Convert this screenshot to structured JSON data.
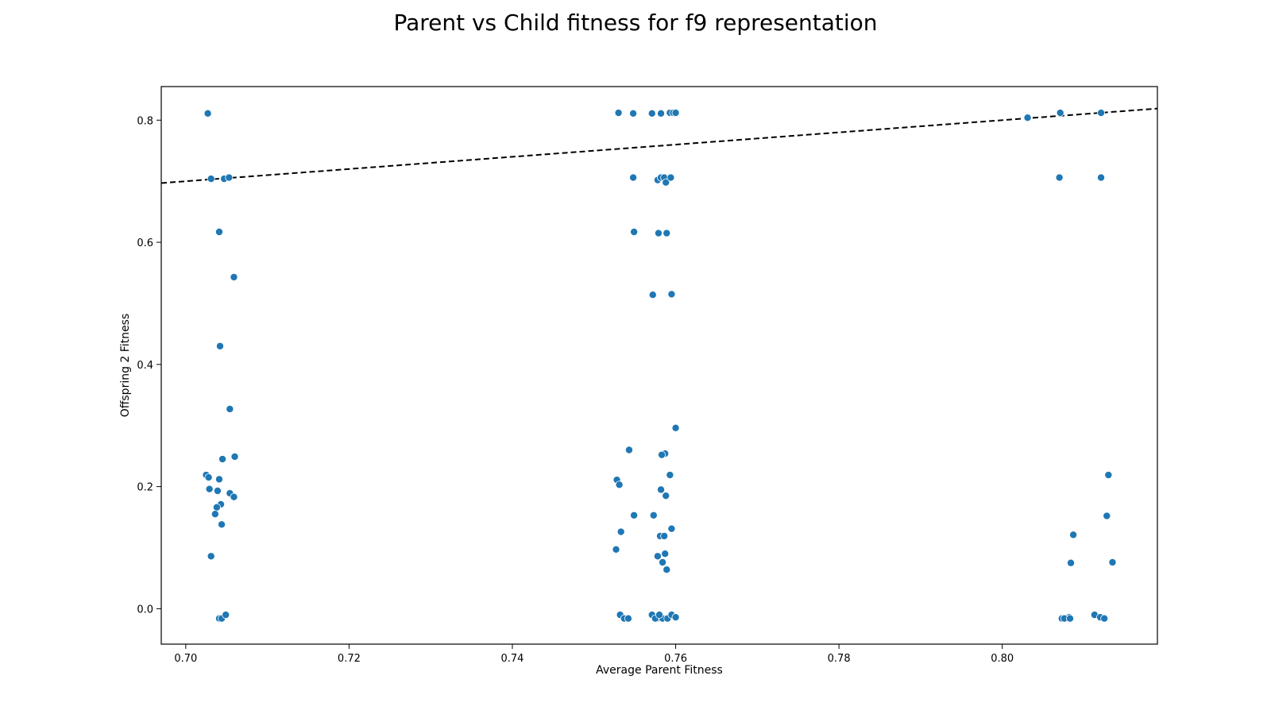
{
  "chart_data": {
    "type": "scatter",
    "title": "Parent vs Child fitness for f9 representation",
    "xlabel": "Average Parent Fitness",
    "ylabel": "Offspring 2 Fitness",
    "xlim": [
      0.697,
      0.819
    ],
    "ylim": [
      -0.058,
      0.855
    ],
    "xticks": [
      0.7,
      0.72,
      0.74,
      0.76,
      0.78,
      0.8
    ],
    "xtick_labels": [
      "0.70",
      "0.72",
      "0.74",
      "0.76",
      "0.78",
      "0.80"
    ],
    "yticks": [
      0.0,
      0.2,
      0.4,
      0.6,
      0.8
    ],
    "ytick_labels": [
      "0.0",
      "0.2",
      "0.4",
      "0.6",
      "0.8"
    ],
    "marker_color": "#1f77b4",
    "reference_line": {
      "style": "dashed",
      "color": "#000000",
      "description": "y = x"
    },
    "series": [
      {
        "name": "Offspring 2 Fitness",
        "x": [
          0.7027,
          0.7031,
          0.7047,
          0.7053,
          0.7041,
          0.7059,
          0.7042,
          0.7054,
          0.7045,
          0.706,
          0.7025,
          0.7028,
          0.7029,
          0.7039,
          0.7041,
          0.7054,
          0.7059,
          0.7043,
          0.7038,
          0.7036,
          0.7044,
          0.7031,
          0.7041,
          0.7044,
          0.7049,
          0.753,
          0.7548,
          0.7571,
          0.7582,
          0.7593,
          0.7597,
          0.76,
          0.7548,
          0.7578,
          0.7582,
          0.7586,
          0.7588,
          0.7594,
          0.7549,
          0.7579,
          0.7589,
          0.7572,
          0.7595,
          0.76,
          0.7543,
          0.7587,
          0.7583,
          0.7593,
          0.7528,
          0.7531,
          0.7582,
          0.7588,
          0.7549,
          0.7573,
          0.7595,
          0.7533,
          0.7581,
          0.7586,
          0.7527,
          0.7578,
          0.7587,
          0.7584,
          0.7589,
          0.7532,
          0.7537,
          0.7542,
          0.7571,
          0.7577,
          0.7584,
          0.759,
          0.7595,
          0.76,
          0.7575,
          0.758,
          0.8031,
          0.8071,
          0.8121,
          0.807,
          0.8121,
          0.813,
          0.8128,
          0.8087,
          0.8084,
          0.8135,
          0.8073,
          0.8078,
          0.8082,
          0.8113,
          0.812,
          0.8125,
          0.8076,
          0.8083
        ],
        "y": [
          0.811,
          0.704,
          0.704,
          0.706,
          0.617,
          0.543,
          0.43,
          0.327,
          0.245,
          0.249,
          0.219,
          0.215,
          0.196,
          0.193,
          0.212,
          0.189,
          0.183,
          0.171,
          0.166,
          0.155,
          0.138,
          0.086,
          -0.016,
          -0.016,
          -0.01,
          0.812,
          0.811,
          0.811,
          0.811,
          0.812,
          0.812,
          0.812,
          0.706,
          0.702,
          0.706,
          0.706,
          0.698,
          0.706,
          0.617,
          0.615,
          0.615,
          0.514,
          0.515,
          0.296,
          0.26,
          0.254,
          0.252,
          0.219,
          0.211,
          0.203,
          0.195,
          0.185,
          0.153,
          0.153,
          0.131,
          0.126,
          0.119,
          0.119,
          0.097,
          0.086,
          0.09,
          0.076,
          0.064,
          -0.01,
          -0.016,
          -0.016,
          -0.01,
          -0.016,
          -0.016,
          -0.016,
          -0.01,
          -0.014,
          -0.016,
          -0.01,
          0.804,
          0.812,
          0.812,
          0.706,
          0.706,
          0.219,
          0.152,
          0.121,
          0.075,
          0.076,
          -0.016,
          -0.016,
          -0.014,
          -0.01,
          -0.014,
          -0.016,
          -0.016,
          -0.016
        ]
      }
    ]
  }
}
